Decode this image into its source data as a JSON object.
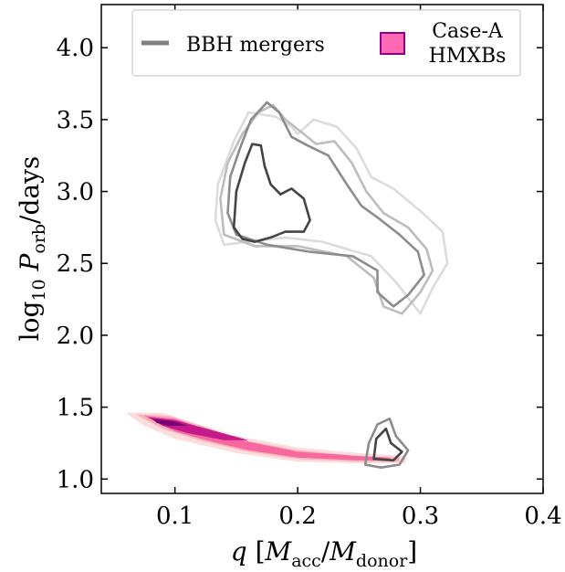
{
  "chart_data": {
    "type": "contour",
    "xlabel": {
      "var": "q",
      "open": "[",
      "m1": "M",
      "sub1": "acc",
      "slash": "/",
      "m2": "M",
      "sub2": "donor",
      "close": "]"
    },
    "ylabel": {
      "pre": "log",
      "sub1": "10",
      "var": "P",
      "sub2": "orb",
      "post": "/days"
    },
    "xlim": [
      0.04,
      0.4
    ],
    "ylim": [
      0.9,
      4.3
    ],
    "xticks": [
      0.1,
      0.2,
      0.3,
      0.4
    ],
    "xtick_labels": [
      "0.1",
      "0.2",
      "0.3",
      "0.4"
    ],
    "yticks": [
      1.0,
      1.5,
      2.0,
      2.5,
      3.0,
      3.5,
      4.0
    ],
    "ytick_labels": [
      "1.0",
      "1.5",
      "2.0",
      "2.5",
      "3.0",
      "3.5",
      "4.0"
    ],
    "legend": {
      "placement": "top",
      "entries": [
        {
          "label": "BBH mergers",
          "style": "line",
          "color": "#808080"
        },
        {
          "label": "Case-A\nHMXBs",
          "style": "patch",
          "color": "#ff69b4",
          "edge": "#8b008b"
        }
      ]
    },
    "series": [
      {
        "name": "BBH mergers",
        "kind": "contour_lines",
        "levels": [
          {
            "color": "#dcdcdc",
            "path": [
              [
                0.14,
                2.63
              ],
              [
                0.133,
                2.8
              ],
              [
                0.135,
                3.05
              ],
              [
                0.148,
                3.35
              ],
              [
                0.16,
                3.55
              ],
              [
                0.182,
                3.52
              ],
              [
                0.195,
                3.45
              ],
              [
                0.2,
                3.4
              ],
              [
                0.213,
                3.5
              ],
              [
                0.232,
                3.45
              ],
              [
                0.248,
                3.3
              ],
              [
                0.26,
                3.1
              ],
              [
                0.278,
                3.02
              ],
              [
                0.302,
                2.85
              ],
              [
                0.318,
                2.72
              ],
              [
                0.322,
                2.5
              ],
              [
                0.31,
                2.33
              ],
              [
                0.3,
                2.15
              ],
              [
                0.28,
                2.37
              ],
              [
                0.26,
                2.55
              ],
              [
                0.22,
                2.65
              ],
              [
                0.19,
                2.68
              ],
              [
                0.16,
                2.65
              ],
              [
                0.14,
                2.63
              ]
            ]
          },
          {
            "color": "#bdbdbd",
            "path": [
              [
                0.14,
                2.7
              ],
              [
                0.137,
                2.95
              ],
              [
                0.143,
                3.2
              ],
              [
                0.155,
                3.4
              ],
              [
                0.168,
                3.55
              ],
              [
                0.18,
                3.6
              ],
              [
                0.19,
                3.5
              ],
              [
                0.205,
                3.4
              ],
              [
                0.215,
                3.33
              ],
              [
                0.23,
                3.35
              ],
              [
                0.244,
                3.2
              ],
              [
                0.256,
                3.0
              ],
              [
                0.27,
                2.85
              ],
              [
                0.29,
                2.75
              ],
              [
                0.305,
                2.6
              ],
              [
                0.31,
                2.45
              ],
              [
                0.3,
                2.3
              ],
              [
                0.285,
                2.15
              ],
              [
                0.27,
                2.2
              ],
              [
                0.262,
                2.4
              ],
              [
                0.24,
                2.55
              ],
              [
                0.2,
                2.62
              ],
              [
                0.165,
                2.62
              ],
              [
                0.14,
                2.7
              ]
            ]
          },
          {
            "color": "#8c8c8c",
            "path": [
              [
                0.143,
                2.85
              ],
              [
                0.145,
                3.1
              ],
              [
                0.153,
                3.3
              ],
              [
                0.162,
                3.5
              ],
              [
                0.175,
                3.62
              ],
              [
                0.185,
                3.55
              ],
              [
                0.195,
                3.38
              ],
              [
                0.208,
                3.32
              ],
              [
                0.225,
                3.25
              ],
              [
                0.24,
                3.05
              ],
              [
                0.252,
                2.9
              ],
              [
                0.265,
                2.82
              ],
              [
                0.283,
                2.7
              ],
              [
                0.298,
                2.58
              ],
              [
                0.303,
                2.42
              ],
              [
                0.29,
                2.28
              ],
              [
                0.278,
                2.2
              ],
              [
                0.265,
                2.3
              ],
              [
                0.265,
                2.45
              ],
              [
                0.245,
                2.55
              ],
              [
                0.21,
                2.58
              ],
              [
                0.175,
                2.63
              ],
              [
                0.15,
                2.7
              ],
              [
                0.143,
                2.85
              ]
            ]
          },
          {
            "color": "#444444",
            "path": [
              [
                0.148,
                2.75
              ],
              [
                0.15,
                3.0
              ],
              [
                0.157,
                3.2
              ],
              [
                0.163,
                3.33
              ],
              [
                0.17,
                3.32
              ],
              [
                0.173,
                3.18
              ],
              [
                0.178,
                3.05
              ],
              [
                0.186,
                2.98
              ],
              [
                0.195,
                3.02
              ],
              [
                0.205,
                2.95
              ],
              [
                0.21,
                2.8
              ],
              [
                0.205,
                2.72
              ],
              [
                0.19,
                2.72
              ],
              [
                0.178,
                2.68
              ],
              [
                0.165,
                2.65
              ],
              [
                0.155,
                2.67
              ],
              [
                0.148,
                2.75
              ]
            ]
          },
          {
            "color": "#8c8c8c",
            "path": [
              [
                0.255,
                1.1
              ],
              [
                0.258,
                1.25
              ],
              [
                0.265,
                1.38
              ],
              [
                0.275,
                1.42
              ],
              [
                0.28,
                1.3
              ],
              [
                0.29,
                1.2
              ],
              [
                0.283,
                1.1
              ],
              [
                0.268,
                1.08
              ],
              [
                0.255,
                1.1
              ]
            ]
          },
          {
            "color": "#444444",
            "path": [
              [
                0.262,
                1.14
              ],
              [
                0.264,
                1.28
              ],
              [
                0.272,
                1.35
              ],
              [
                0.276,
                1.25
              ],
              [
                0.285,
                1.19
              ],
              [
                0.278,
                1.13
              ],
              [
                0.262,
                1.14
              ]
            ]
          }
        ]
      },
      {
        "name": "Case-A HMXBs",
        "kind": "filled_contours",
        "levels": [
          {
            "color": "#fcdcdc",
            "path": [
              [
                0.06,
                1.46
              ],
              [
                0.09,
                1.46
              ],
              [
                0.12,
                1.38
              ],
              [
                0.15,
                1.3
              ],
              [
                0.2,
                1.22
              ],
              [
                0.25,
                1.18
              ],
              [
                0.288,
                1.16
              ],
              [
                0.288,
                1.11
              ],
              [
                0.25,
                1.11
              ],
              [
                0.2,
                1.12
              ],
              [
                0.15,
                1.18
              ],
              [
                0.1,
                1.28
              ],
              [
                0.075,
                1.37
              ],
              [
                0.06,
                1.46
              ]
            ]
          },
          {
            "color": "#f9b2b8",
            "path": [
              [
                0.068,
                1.45
              ],
              [
                0.095,
                1.44
              ],
              [
                0.125,
                1.36
              ],
              [
                0.155,
                1.27
              ],
              [
                0.2,
                1.2
              ],
              [
                0.25,
                1.16
              ],
              [
                0.283,
                1.15
              ],
              [
                0.283,
                1.12
              ],
              [
                0.25,
                1.12
              ],
              [
                0.2,
                1.14
              ],
              [
                0.16,
                1.19
              ],
              [
                0.12,
                1.27
              ],
              [
                0.09,
                1.35
              ],
              [
                0.068,
                1.45
              ]
            ]
          },
          {
            "color": "#f768a1",
            "path": [
              [
                0.075,
                1.44
              ],
              [
                0.1,
                1.42
              ],
              [
                0.13,
                1.33
              ],
              [
                0.16,
                1.26
              ],
              [
                0.2,
                1.19
              ],
              [
                0.25,
                1.16
              ],
              [
                0.275,
                1.15
              ],
              [
                0.275,
                1.13
              ],
              [
                0.25,
                1.13
              ],
              [
                0.2,
                1.15
              ],
              [
                0.16,
                1.2
              ],
              [
                0.13,
                1.26
              ],
              [
                0.1,
                1.33
              ],
              [
                0.075,
                1.44
              ]
            ]
          },
          {
            "color": "#c51b8a",
            "path": [
              [
                0.078,
                1.43
              ],
              [
                0.1,
                1.41
              ],
              [
                0.13,
                1.34
              ],
              [
                0.16,
                1.27
              ],
              [
                0.14,
                1.27
              ],
              [
                0.11,
                1.32
              ],
              [
                0.09,
                1.37
              ],
              [
                0.078,
                1.43
              ]
            ]
          },
          {
            "color": "#7a0177",
            "path": [
              [
                0.082,
                1.42
              ],
              [
                0.1,
                1.4
              ],
              [
                0.11,
                1.37
              ],
              [
                0.095,
                1.37
              ],
              [
                0.085,
                1.39
              ],
              [
                0.082,
                1.42
              ]
            ]
          }
        ]
      }
    ]
  }
}
